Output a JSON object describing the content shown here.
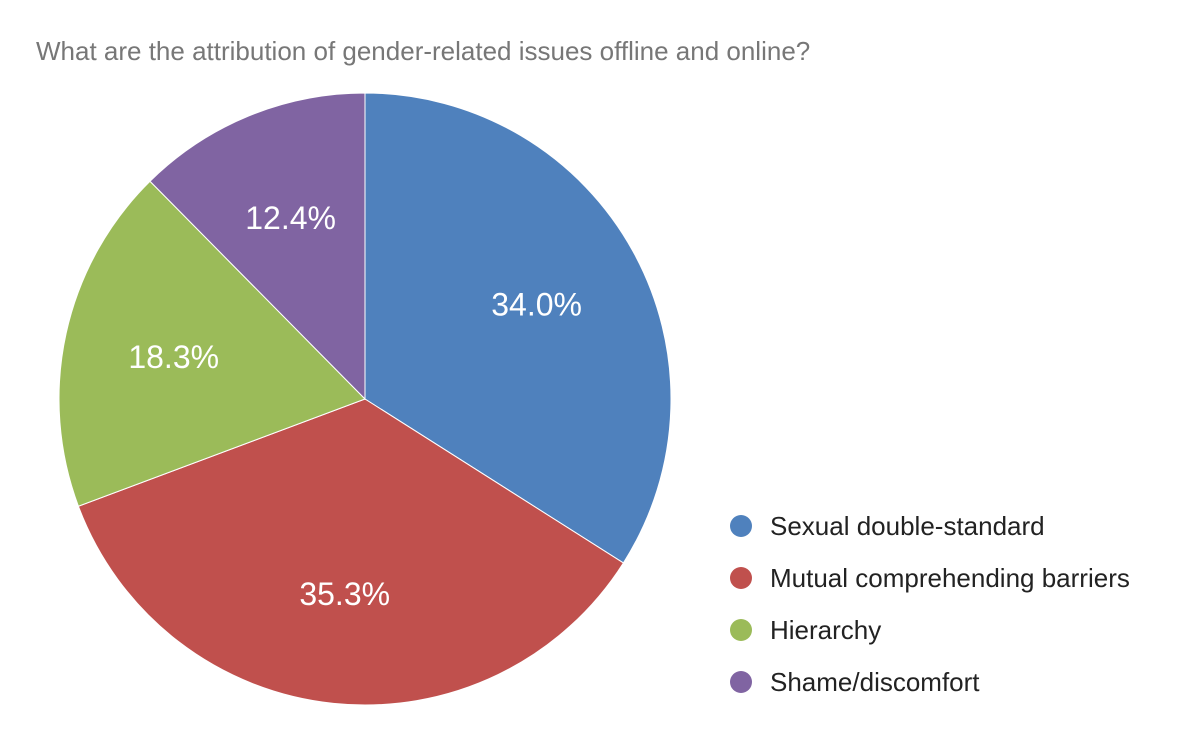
{
  "chart_data": {
    "type": "pie",
    "title": "What are the attribution of gender-related issues offline and online?",
    "start_angle_deg": 0,
    "direction": "clockwise",
    "slices": [
      {
        "label": "Sexual double-standard",
        "value": 34.0,
        "display": "34.0%",
        "color": "#4F81BD"
      },
      {
        "label": "Mutual comprehending barriers",
        "value": 35.3,
        "display": "35.3%",
        "color": "#C0504D"
      },
      {
        "label": "Hierarchy",
        "value": 18.3,
        "display": "18.3%",
        "color": "#9BBB59"
      },
      {
        "label": "Shame/discomfort",
        "value": 12.4,
        "display": "12.4%",
        "color": "#8064A2"
      }
    ],
    "legend_position": "bottom-right"
  }
}
